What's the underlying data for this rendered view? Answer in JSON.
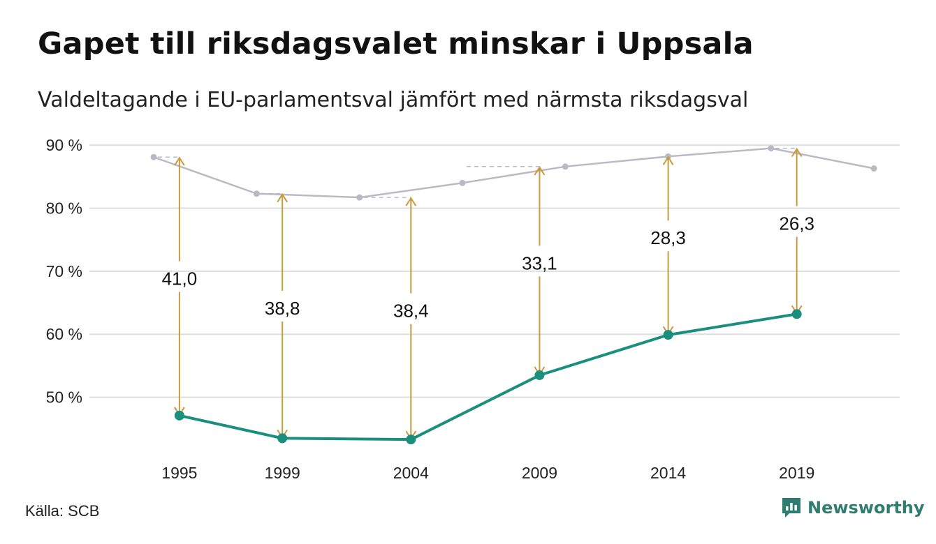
{
  "header": {
    "title": "Gapet till riksdagsvalet minskar i Uppsala",
    "subtitle": "Valdeltagande i EU-parlamentsval jämfört med närmsta riksdagsval"
  },
  "footer": {
    "source": "Källa: SCB",
    "brand": "Newsworthy",
    "brand_icon": "newsworthy-logo-icon"
  },
  "colors": {
    "riksdag": "#bcb9c6",
    "eu": "#1a8f7e",
    "gap": "#c99a3e",
    "grid": "#dedede",
    "brand": "#2f7d70"
  },
  "chart_data": {
    "type": "line",
    "y_ticks": [
      {
        "value": 50,
        "label": "50 %"
      },
      {
        "value": 60,
        "label": "60 %"
      },
      {
        "value": 70,
        "label": "70 %"
      },
      {
        "value": 80,
        "label": "80 %"
      },
      {
        "value": 90,
        "label": "90 %"
      }
    ],
    "x_ticks": [
      1995,
      1999,
      2004,
      2009,
      2014,
      2019
    ],
    "x_tick_labels": [
      "1995",
      "1999",
      "2004",
      "2009",
      "2014",
      "2019"
    ],
    "ylim": [
      40,
      92
    ],
    "xlim": [
      1991.5,
      2023
    ],
    "grid": true,
    "series": [
      {
        "key": "riksdag",
        "points": [
          {
            "x": 1994,
            "y": 88.1
          },
          {
            "x": 1998,
            "y": 82.3
          },
          {
            "x": 2002,
            "y": 81.7
          },
          {
            "x": 2006,
            "y": 84.0
          },
          {
            "x": 2010,
            "y": 86.6
          },
          {
            "x": 2014,
            "y": 88.2
          },
          {
            "x": 2018,
            "y": 89.5
          },
          {
            "x": 2022,
            "y": 86.3
          }
        ]
      },
      {
        "key": "eu",
        "points": [
          {
            "x": 1995,
            "y": 47.1
          },
          {
            "x": 1999,
            "y": 43.5
          },
          {
            "x": 2004,
            "y": 43.3
          },
          {
            "x": 2009,
            "y": 53.5
          },
          {
            "x": 2014,
            "y": 59.9
          },
          {
            "x": 2019,
            "y": 63.2
          }
        ]
      }
    ],
    "gaps": [
      {
        "x": 1995,
        "from": 47.1,
        "to": 88.1,
        "label": "41,0"
      },
      {
        "x": 1999,
        "from": 43.5,
        "to": 82.3,
        "label": "38,8"
      },
      {
        "x": 2004,
        "from": 43.3,
        "to": 81.7,
        "label": "38,4"
      },
      {
        "x": 2009,
        "from": 53.5,
        "to": 86.6,
        "label": "33,1"
      },
      {
        "x": 2014,
        "from": 59.9,
        "to": 88.2,
        "label": "28,3"
      },
      {
        "x": 2019,
        "from": 63.2,
        "to": 89.5,
        "label": "26,3"
      }
    ]
  }
}
